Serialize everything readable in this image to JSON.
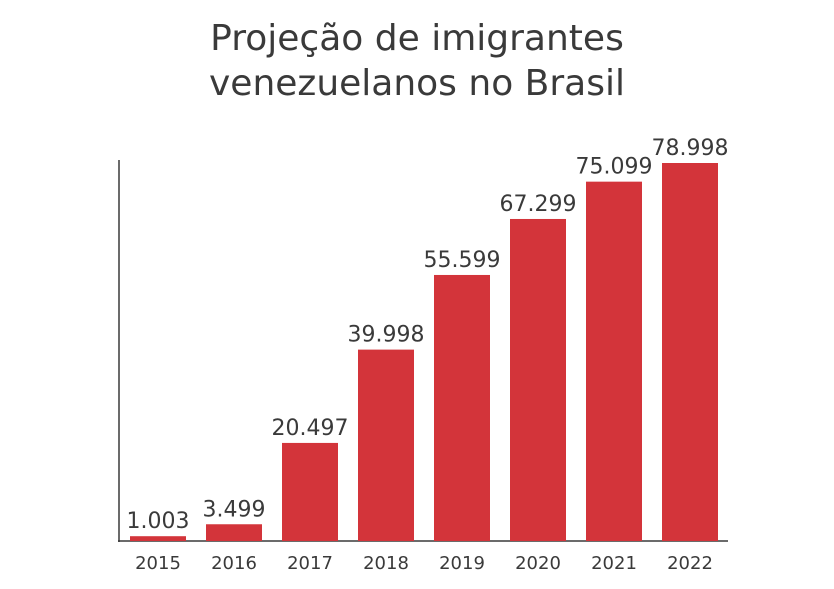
{
  "chart_data": {
    "type": "bar",
    "title_lines": [
      "Projeção de imigrantes",
      "venezuelanos no Brasil"
    ],
    "categories": [
      "2015",
      "2016",
      "2017",
      "2018",
      "2019",
      "2020",
      "2021",
      "2022"
    ],
    "values": [
      1003,
      3499,
      20497,
      39998,
      55599,
      67299,
      75099,
      78998
    ],
    "value_labels": [
      "1.003",
      "3.499",
      "20.497",
      "39.998",
      "55.599",
      "67.299",
      "75.099",
      "78.998"
    ],
    "xlabel": "",
    "ylabel": "",
    "grid": false,
    "bar_color": "#d3343a"
  }
}
